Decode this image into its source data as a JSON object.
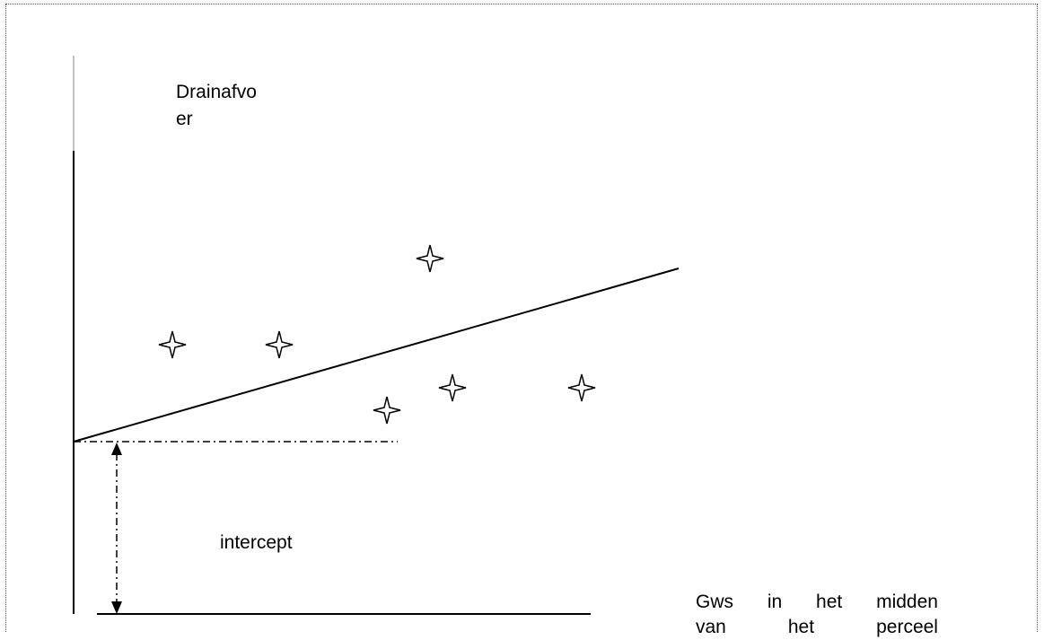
{
  "labels": {
    "y_axis_line1": "Drainafvo",
    "y_axis_line2": "er",
    "intercept": "intercept",
    "x_axis_line1": [
      "Gws",
      "in",
      "het",
      "midden"
    ],
    "x_axis_line2": [
      "van",
      "het",
      "perceel"
    ]
  },
  "colors": {
    "ink": "#000000",
    "frame": "#555555"
  },
  "marker_icon": "four-point-star-icon",
  "points_count": 6
}
